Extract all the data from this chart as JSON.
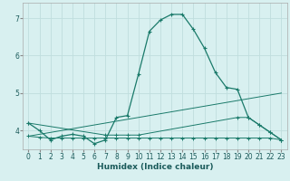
{
  "xlabel": "Humidex (Indice chaleur)",
  "background_color": "#d8f0f0",
  "grid_color": "#c0dede",
  "line_color": "#1a7a6a",
  "xlim": [
    -0.5,
    23.5
  ],
  "ylim": [
    3.5,
    7.4
  ],
  "yticks": [
    4,
    5,
    6,
    7
  ],
  "xticks": [
    0,
    1,
    2,
    3,
    4,
    5,
    6,
    7,
    8,
    9,
    10,
    11,
    12,
    13,
    14,
    15,
    16,
    17,
    18,
    19,
    20,
    21,
    22,
    23
  ],
  "series1_x": [
    0,
    1,
    2,
    3,
    4,
    5,
    6,
    7,
    8,
    9,
    10,
    11,
    12,
    13,
    14,
    15,
    16,
    17,
    18,
    19,
    20,
    21,
    22,
    23
  ],
  "series1_y": [
    4.2,
    4.0,
    3.75,
    3.85,
    3.9,
    3.85,
    3.65,
    3.75,
    4.35,
    4.4,
    5.5,
    6.65,
    6.95,
    7.1,
    7.1,
    6.7,
    6.2,
    5.55,
    5.15,
    5.1,
    4.35,
    4.15,
    3.95,
    3.75
  ],
  "series2_x": [
    0,
    1,
    2,
    3,
    4,
    5,
    6,
    7,
    8,
    9,
    10,
    11,
    12,
    13,
    14,
    15,
    16,
    17,
    18,
    19,
    20,
    21,
    22,
    23
  ],
  "series2_y": [
    3.85,
    3.82,
    3.8,
    3.8,
    3.8,
    3.8,
    3.8,
    3.8,
    3.8,
    3.8,
    3.8,
    3.8,
    3.8,
    3.8,
    3.8,
    3.8,
    3.8,
    3.8,
    3.8,
    3.8,
    3.8,
    3.8,
    3.8,
    3.75
  ],
  "series3_x": [
    0,
    23
  ],
  "series3_y": [
    3.85,
    5.0
  ],
  "series4_x": [
    0,
    7,
    8,
    9,
    10,
    19,
    20,
    21,
    22,
    23
  ],
  "series4_y": [
    4.2,
    3.88,
    3.88,
    3.88,
    3.88,
    4.35,
    4.35,
    4.15,
    3.95,
    3.75
  ]
}
